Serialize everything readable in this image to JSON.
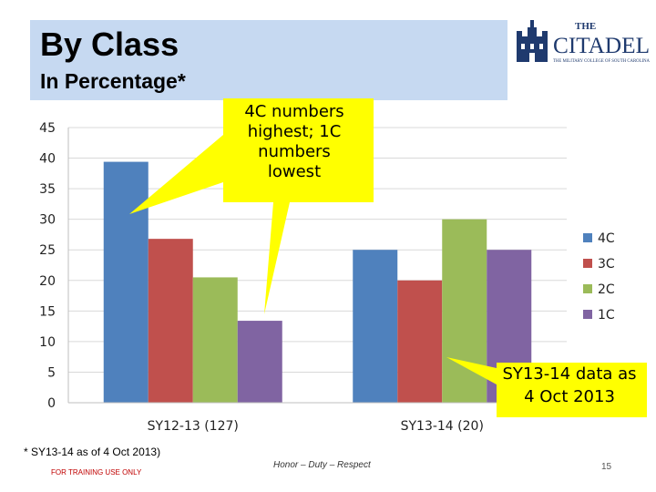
{
  "slide": {
    "title": "By Class",
    "subtitle": "In Percentage*",
    "footnote": "* SY13-14 as of 4 Oct 2013)",
    "training": "FOR TRAINING USE ONLY",
    "motto": "Honor – Duty – Respect",
    "page_number": "15"
  },
  "logo": {
    "the": "THE",
    "name": "CITADEL",
    "tagline": "THE MILITARY COLLEGE OF SOUTH CAROLINA",
    "color": "#1f3a6e"
  },
  "callouts": {
    "left": "4C numbers highest; 1C numbers lowest",
    "right": "SY13-14 data as 4 Oct 2013",
    "color": "#ffff00"
  },
  "chart_data": {
    "type": "bar",
    "categories": [
      "SY12-13 (127)",
      "SY13-14 (20)"
    ],
    "series": [
      {
        "name": "4C",
        "color": "#4f81bd",
        "values": [
          39.4,
          25
        ]
      },
      {
        "name": "3C",
        "color": "#c0504d",
        "values": [
          26.8,
          20
        ]
      },
      {
        "name": "2C",
        "color": "#9bbb59",
        "values": [
          20.5,
          30
        ]
      },
      {
        "name": "1C",
        "color": "#8064a2",
        "values": [
          13.4,
          25
        ]
      }
    ],
    "ylim": [
      0,
      45
    ],
    "yticks": [
      0,
      5,
      10,
      15,
      20,
      25,
      30,
      35,
      40,
      45
    ],
    "grid": true,
    "legend": "right"
  }
}
